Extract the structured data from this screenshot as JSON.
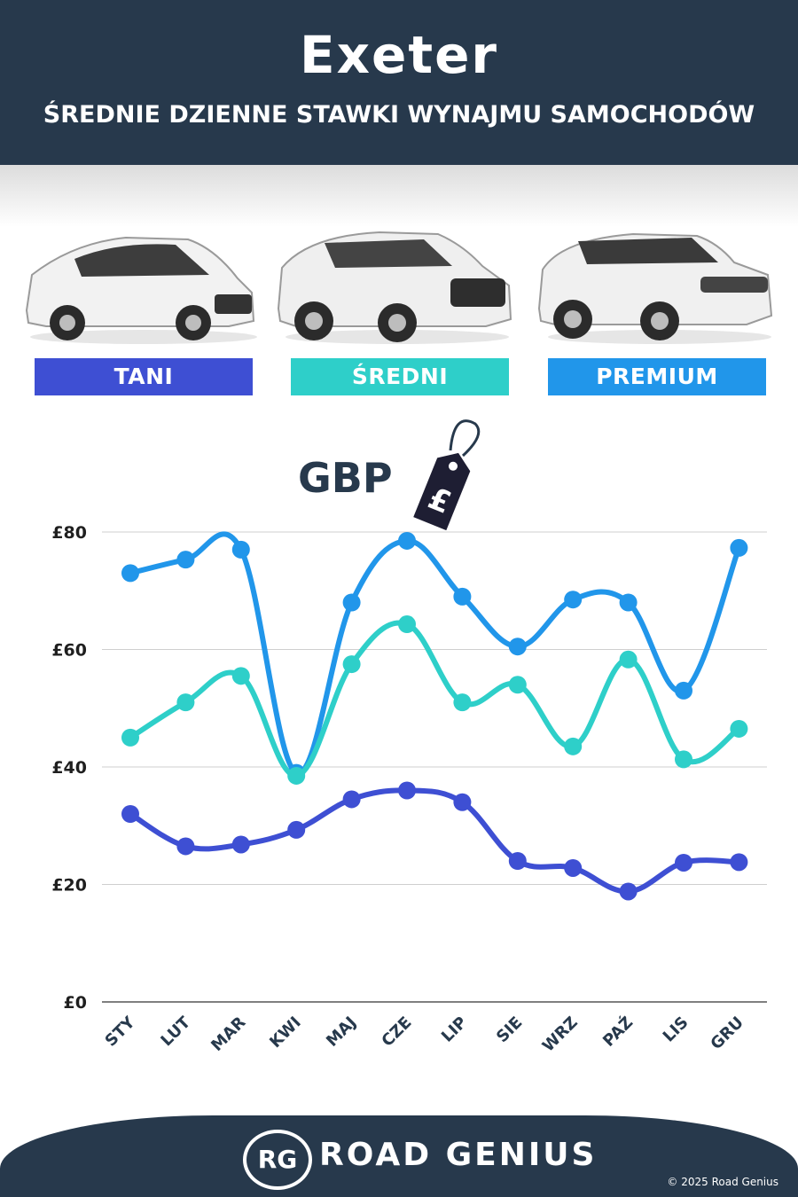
{
  "header": {
    "city": "Exeter",
    "subtitle": "ŚREDNIE DZIENNE STAWKI WYNAJMU SAMOCHODÓW"
  },
  "categories": [
    {
      "label": "TANI",
      "color": "#3e4fd3"
    },
    {
      "label": "ŚREDNI",
      "color": "#2ecfc9"
    },
    {
      "label": "PREMIUM",
      "color": "#2196ea"
    }
  ],
  "currency": {
    "label": "GBP",
    "tag_symbol": "£"
  },
  "chart_data": {
    "type": "line",
    "categories": [
      "STY",
      "LUT",
      "MAR",
      "KWI",
      "MAJ",
      "CZE",
      "LIP",
      "SIE",
      "WRZ",
      "PAŹ",
      "LIS",
      "GRU"
    ],
    "series": [
      {
        "name": "PREMIUM",
        "color": "#2196ea",
        "values": [
          73,
          75.3,
          77,
          39,
          68,
          78.5,
          69,
          60.5,
          68.5,
          68,
          53,
          77.3
        ]
      },
      {
        "name": "ŚREDNI",
        "color": "#2ecfc9",
        "values": [
          45,
          51,
          55.5,
          38.5,
          57.5,
          64.3,
          51,
          54,
          43.5,
          58.3,
          41.3,
          46.5
        ]
      },
      {
        "name": "TANI",
        "color": "#3e4fd3",
        "values": [
          32,
          26.5,
          26.8,
          29.3,
          34.5,
          36,
          34,
          24,
          22.8,
          18.8,
          23.7,
          23.8
        ]
      }
    ],
    "y_ticks": [
      "£0",
      "£20",
      "£40",
      "£60",
      "£80"
    ],
    "ylim": [
      0,
      80
    ],
    "grid": true
  },
  "footer": {
    "logo": "RG",
    "brand": "ROAD GENIUS",
    "copyright": "© 2025 Road Genius"
  }
}
